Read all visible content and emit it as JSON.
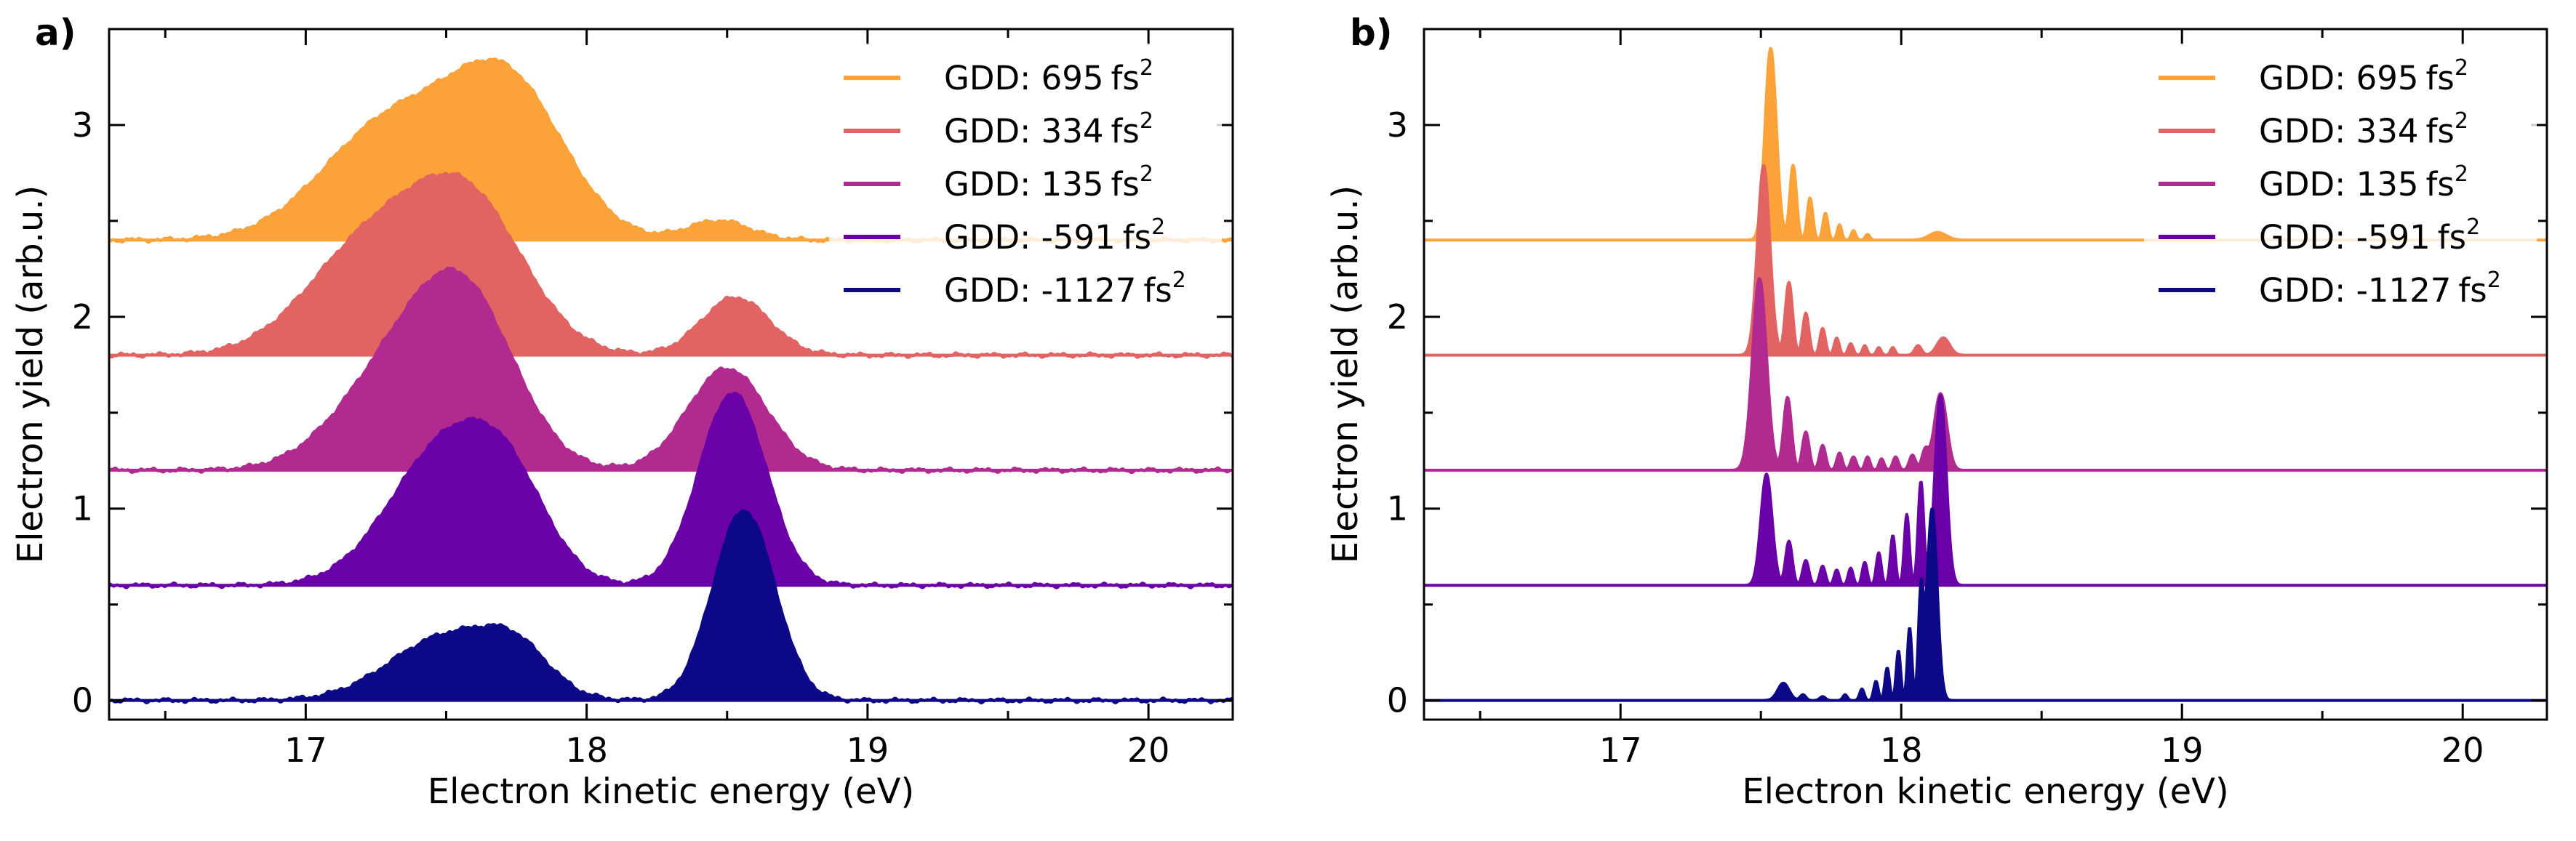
{
  "chart_data": [
    {
      "panel": "a)",
      "type": "area",
      "title": "",
      "xlabel": "Electron kinetic energy (eV)",
      "ylabel": "Electron yield (arb.u.)",
      "xlim": [
        16.3,
        20.3
      ],
      "ylim": [
        -0.1,
        3.5
      ],
      "xticks": [
        "17",
        "18",
        "19",
        "20"
      ],
      "yticks": [
        "0",
        "1",
        "2",
        "3"
      ],
      "legend_position": "top-right",
      "series": [
        {
          "name": "GDD: 695",
          "unit": "fs",
          "exp": "2",
          "color": "#fba238",
          "offset": 2.4,
          "peaks": [
            {
              "c": 17.3,
              "w": 0.24,
              "a": 0.6
            },
            {
              "c": 17.72,
              "w": 0.2,
              "a": 0.78
            },
            {
              "c": 18.47,
              "w": 0.11,
              "a": 0.1
            }
          ]
        },
        {
          "name": "GDD: 334",
          "unit": "fs",
          "exp": "2",
          "color": "#e16462",
          "offset": 1.8,
          "peaks": [
            {
              "c": 17.22,
              "w": 0.22,
              "a": 0.55
            },
            {
              "c": 17.58,
              "w": 0.2,
              "a": 0.76
            },
            {
              "c": 18.53,
              "w": 0.12,
              "a": 0.3
            }
          ]
        },
        {
          "name": "GDD: 135",
          "unit": "fs",
          "exp": "2",
          "color": "#b12a90",
          "offset": 1.2,
          "peaks": [
            {
              "c": 17.3,
              "w": 0.2,
              "a": 0.45
            },
            {
              "c": 17.57,
              "w": 0.18,
              "a": 0.83
            },
            {
              "c": 18.5,
              "w": 0.14,
              "a": 0.53
            }
          ]
        },
        {
          "name": "GDD: -591",
          "unit": "fs",
          "exp": "2",
          "color": "#6a00a8",
          "offset": 0.6,
          "peaks": [
            {
              "c": 17.5,
              "w": 0.2,
              "a": 0.72
            },
            {
              "c": 17.73,
              "w": 0.14,
              "a": 0.35
            },
            {
              "c": 18.52,
              "w": 0.12,
              "a": 1.0
            }
          ]
        },
        {
          "name": "GDD: -1127",
          "unit": "fs",
          "exp": "2",
          "color": "#0d0887",
          "offset": 0.0,
          "peaks": [
            {
              "c": 17.5,
              "w": 0.2,
              "a": 0.33
            },
            {
              "c": 17.75,
              "w": 0.12,
              "a": 0.2
            },
            {
              "c": 18.56,
              "w": 0.11,
              "a": 0.99
            }
          ]
        }
      ]
    },
    {
      "panel": "b)",
      "type": "area",
      "title": "",
      "xlabel": "Electron kinetic energy (eV)",
      "ylabel": "Electron yield (arb.u.)",
      "xlim": [
        16.3,
        20.3
      ],
      "ylim": [
        -0.1,
        3.5
      ],
      "xticks": [
        "17",
        "18",
        "19",
        "20"
      ],
      "yticks": [
        "0",
        "1",
        "2",
        "3"
      ],
      "legend_position": "top-right",
      "series": [
        {
          "name": "GDD: 695",
          "unit": "fs",
          "exp": "2",
          "color": "#fba238",
          "offset": 2.4,
          "peaks": [
            {
              "c": 17.535,
              "w": 0.02,
              "a": 1.0
            },
            {
              "c": 17.615,
              "w": 0.012,
              "a": 0.39
            },
            {
              "c": 17.675,
              "w": 0.01,
              "a": 0.22
            },
            {
              "c": 17.73,
              "w": 0.009,
              "a": 0.14
            },
            {
              "c": 17.78,
              "w": 0.008,
              "a": 0.08
            },
            {
              "c": 17.83,
              "w": 0.008,
              "a": 0.05
            },
            {
              "c": 17.88,
              "w": 0.008,
              "a": 0.03
            },
            {
              "c": 18.13,
              "w": 0.03,
              "a": 0.04
            }
          ]
        },
        {
          "name": "GDD: 334",
          "unit": "fs",
          "exp": "2",
          "color": "#e16462",
          "offset": 1.8,
          "peaks": [
            {
              "c": 17.51,
              "w": 0.022,
              "a": 0.99
            },
            {
              "c": 17.6,
              "w": 0.013,
              "a": 0.38
            },
            {
              "c": 17.66,
              "w": 0.011,
              "a": 0.22
            },
            {
              "c": 17.72,
              "w": 0.01,
              "a": 0.14
            },
            {
              "c": 17.77,
              "w": 0.009,
              "a": 0.09
            },
            {
              "c": 17.82,
              "w": 0.009,
              "a": 0.06
            },
            {
              "c": 17.87,
              "w": 0.008,
              "a": 0.05
            },
            {
              "c": 17.92,
              "w": 0.008,
              "a": 0.04
            },
            {
              "c": 17.97,
              "w": 0.008,
              "a": 0.04
            },
            {
              "c": 18.06,
              "w": 0.012,
              "a": 0.05
            },
            {
              "c": 18.15,
              "w": 0.022,
              "a": 0.09
            }
          ]
        },
        {
          "name": "GDD: 135",
          "unit": "fs",
          "exp": "2",
          "color": "#b12a90",
          "offset": 1.2,
          "peaks": [
            {
              "c": 17.495,
              "w": 0.025,
              "a": 1.0
            },
            {
              "c": 17.595,
              "w": 0.014,
              "a": 0.38
            },
            {
              "c": 17.66,
              "w": 0.012,
              "a": 0.2
            },
            {
              "c": 17.72,
              "w": 0.011,
              "a": 0.13
            },
            {
              "c": 17.78,
              "w": 0.01,
              "a": 0.09
            },
            {
              "c": 17.83,
              "w": 0.01,
              "a": 0.07
            },
            {
              "c": 17.88,
              "w": 0.009,
              "a": 0.07
            },
            {
              "c": 17.93,
              "w": 0.009,
              "a": 0.06
            },
            {
              "c": 17.98,
              "w": 0.01,
              "a": 0.07
            },
            {
              "c": 18.04,
              "w": 0.011,
              "a": 0.08
            },
            {
              "c": 18.085,
              "w": 0.012,
              "a": 0.1
            },
            {
              "c": 18.14,
              "w": 0.022,
              "a": 0.4
            }
          ]
        },
        {
          "name": "GDD: -591",
          "unit": "fs",
          "exp": "2",
          "color": "#6a00a8",
          "offset": 0.6,
          "peaks": [
            {
              "c": 17.52,
              "w": 0.02,
              "a": 0.58
            },
            {
              "c": 17.6,
              "w": 0.012,
              "a": 0.23
            },
            {
              "c": 17.66,
              "w": 0.011,
              "a": 0.13
            },
            {
              "c": 17.72,
              "w": 0.01,
              "a": 0.1
            },
            {
              "c": 17.77,
              "w": 0.009,
              "a": 0.08
            },
            {
              "c": 17.82,
              "w": 0.009,
              "a": 0.09
            },
            {
              "c": 17.87,
              "w": 0.009,
              "a": 0.12
            },
            {
              "c": 17.92,
              "w": 0.009,
              "a": 0.17
            },
            {
              "c": 17.97,
              "w": 0.009,
              "a": 0.26
            },
            {
              "c": 18.02,
              "w": 0.009,
              "a": 0.37
            },
            {
              "c": 18.07,
              "w": 0.01,
              "a": 0.54
            },
            {
              "c": 18.14,
              "w": 0.02,
              "a": 0.99
            }
          ]
        },
        {
          "name": "GDD: -1127",
          "unit": "fs",
          "exp": "2",
          "color": "#0d0887",
          "offset": 0.0,
          "peaks": [
            {
              "c": 17.58,
              "w": 0.02,
              "a": 0.09
            },
            {
              "c": 17.65,
              "w": 0.01,
              "a": 0.03
            },
            {
              "c": 17.72,
              "w": 0.01,
              "a": 0.02
            },
            {
              "c": 17.8,
              "w": 0.008,
              "a": 0.03
            },
            {
              "c": 17.86,
              "w": 0.008,
              "a": 0.06
            },
            {
              "c": 17.91,
              "w": 0.008,
              "a": 0.1
            },
            {
              "c": 17.95,
              "w": 0.008,
              "a": 0.17
            },
            {
              "c": 17.99,
              "w": 0.008,
              "a": 0.26
            },
            {
              "c": 18.03,
              "w": 0.008,
              "a": 0.38
            },
            {
              "c": 18.07,
              "w": 0.009,
              "a": 0.54
            },
            {
              "c": 18.11,
              "w": 0.018,
              "a": 1.0
            }
          ]
        }
      ]
    }
  ]
}
